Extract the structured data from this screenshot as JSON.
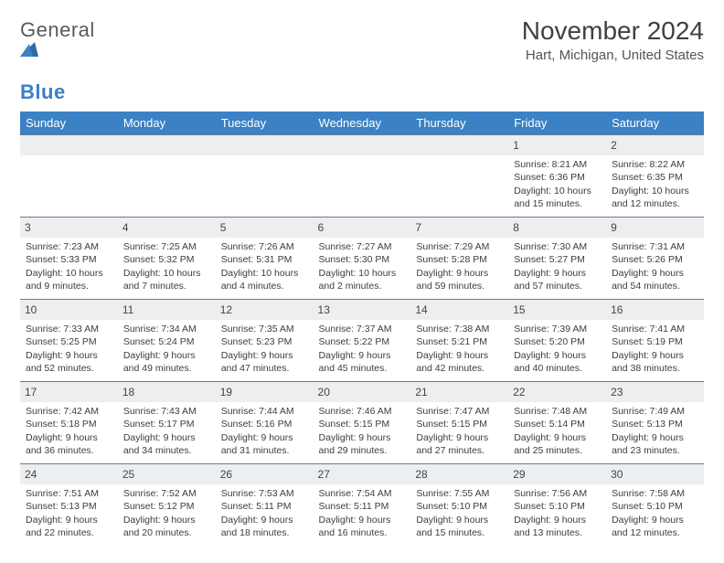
{
  "brand": {
    "part1": "General",
    "part2": "Blue"
  },
  "title": "November 2024",
  "location": "Hart, Michigan, United States",
  "colors": {
    "header_bg": "#3b82c4",
    "header_fg": "#ffffff",
    "daynum_bg": "#eceef0",
    "rule": "#6b7a8f"
  },
  "type": "calendar-table",
  "weekdays": [
    "Sunday",
    "Monday",
    "Tuesday",
    "Wednesday",
    "Thursday",
    "Friday",
    "Saturday"
  ],
  "weeks": [
    [
      {
        "blank": true
      },
      {
        "blank": true
      },
      {
        "blank": true
      },
      {
        "blank": true
      },
      {
        "blank": true
      },
      {
        "day": "1",
        "sunrise": "Sunrise: 8:21 AM",
        "sunset": "Sunset: 6:36 PM",
        "daylight1": "Daylight: 10 hours",
        "daylight2": "and 15 minutes."
      },
      {
        "day": "2",
        "sunrise": "Sunrise: 8:22 AM",
        "sunset": "Sunset: 6:35 PM",
        "daylight1": "Daylight: 10 hours",
        "daylight2": "and 12 minutes."
      }
    ],
    [
      {
        "day": "3",
        "sunrise": "Sunrise: 7:23 AM",
        "sunset": "Sunset: 5:33 PM",
        "daylight1": "Daylight: 10 hours",
        "daylight2": "and 9 minutes."
      },
      {
        "day": "4",
        "sunrise": "Sunrise: 7:25 AM",
        "sunset": "Sunset: 5:32 PM",
        "daylight1": "Daylight: 10 hours",
        "daylight2": "and 7 minutes."
      },
      {
        "day": "5",
        "sunrise": "Sunrise: 7:26 AM",
        "sunset": "Sunset: 5:31 PM",
        "daylight1": "Daylight: 10 hours",
        "daylight2": "and 4 minutes."
      },
      {
        "day": "6",
        "sunrise": "Sunrise: 7:27 AM",
        "sunset": "Sunset: 5:30 PM",
        "daylight1": "Daylight: 10 hours",
        "daylight2": "and 2 minutes."
      },
      {
        "day": "7",
        "sunrise": "Sunrise: 7:29 AM",
        "sunset": "Sunset: 5:28 PM",
        "daylight1": "Daylight: 9 hours",
        "daylight2": "and 59 minutes."
      },
      {
        "day": "8",
        "sunrise": "Sunrise: 7:30 AM",
        "sunset": "Sunset: 5:27 PM",
        "daylight1": "Daylight: 9 hours",
        "daylight2": "and 57 minutes."
      },
      {
        "day": "9",
        "sunrise": "Sunrise: 7:31 AM",
        "sunset": "Sunset: 5:26 PM",
        "daylight1": "Daylight: 9 hours",
        "daylight2": "and 54 minutes."
      }
    ],
    [
      {
        "day": "10",
        "sunrise": "Sunrise: 7:33 AM",
        "sunset": "Sunset: 5:25 PM",
        "daylight1": "Daylight: 9 hours",
        "daylight2": "and 52 minutes."
      },
      {
        "day": "11",
        "sunrise": "Sunrise: 7:34 AM",
        "sunset": "Sunset: 5:24 PM",
        "daylight1": "Daylight: 9 hours",
        "daylight2": "and 49 minutes."
      },
      {
        "day": "12",
        "sunrise": "Sunrise: 7:35 AM",
        "sunset": "Sunset: 5:23 PM",
        "daylight1": "Daylight: 9 hours",
        "daylight2": "and 47 minutes."
      },
      {
        "day": "13",
        "sunrise": "Sunrise: 7:37 AM",
        "sunset": "Sunset: 5:22 PM",
        "daylight1": "Daylight: 9 hours",
        "daylight2": "and 45 minutes."
      },
      {
        "day": "14",
        "sunrise": "Sunrise: 7:38 AM",
        "sunset": "Sunset: 5:21 PM",
        "daylight1": "Daylight: 9 hours",
        "daylight2": "and 42 minutes."
      },
      {
        "day": "15",
        "sunrise": "Sunrise: 7:39 AM",
        "sunset": "Sunset: 5:20 PM",
        "daylight1": "Daylight: 9 hours",
        "daylight2": "and 40 minutes."
      },
      {
        "day": "16",
        "sunrise": "Sunrise: 7:41 AM",
        "sunset": "Sunset: 5:19 PM",
        "daylight1": "Daylight: 9 hours",
        "daylight2": "and 38 minutes."
      }
    ],
    [
      {
        "day": "17",
        "sunrise": "Sunrise: 7:42 AM",
        "sunset": "Sunset: 5:18 PM",
        "daylight1": "Daylight: 9 hours",
        "daylight2": "and 36 minutes."
      },
      {
        "day": "18",
        "sunrise": "Sunrise: 7:43 AM",
        "sunset": "Sunset: 5:17 PM",
        "daylight1": "Daylight: 9 hours",
        "daylight2": "and 34 minutes."
      },
      {
        "day": "19",
        "sunrise": "Sunrise: 7:44 AM",
        "sunset": "Sunset: 5:16 PM",
        "daylight1": "Daylight: 9 hours",
        "daylight2": "and 31 minutes."
      },
      {
        "day": "20",
        "sunrise": "Sunrise: 7:46 AM",
        "sunset": "Sunset: 5:15 PM",
        "daylight1": "Daylight: 9 hours",
        "daylight2": "and 29 minutes."
      },
      {
        "day": "21",
        "sunrise": "Sunrise: 7:47 AM",
        "sunset": "Sunset: 5:15 PM",
        "daylight1": "Daylight: 9 hours",
        "daylight2": "and 27 minutes."
      },
      {
        "day": "22",
        "sunrise": "Sunrise: 7:48 AM",
        "sunset": "Sunset: 5:14 PM",
        "daylight1": "Daylight: 9 hours",
        "daylight2": "and 25 minutes."
      },
      {
        "day": "23",
        "sunrise": "Sunrise: 7:49 AM",
        "sunset": "Sunset: 5:13 PM",
        "daylight1": "Daylight: 9 hours",
        "daylight2": "and 23 minutes."
      }
    ],
    [
      {
        "day": "24",
        "sunrise": "Sunrise: 7:51 AM",
        "sunset": "Sunset: 5:13 PM",
        "daylight1": "Daylight: 9 hours",
        "daylight2": "and 22 minutes."
      },
      {
        "day": "25",
        "sunrise": "Sunrise: 7:52 AM",
        "sunset": "Sunset: 5:12 PM",
        "daylight1": "Daylight: 9 hours",
        "daylight2": "and 20 minutes."
      },
      {
        "day": "26",
        "sunrise": "Sunrise: 7:53 AM",
        "sunset": "Sunset: 5:11 PM",
        "daylight1": "Daylight: 9 hours",
        "daylight2": "and 18 minutes."
      },
      {
        "day": "27",
        "sunrise": "Sunrise: 7:54 AM",
        "sunset": "Sunset: 5:11 PM",
        "daylight1": "Daylight: 9 hours",
        "daylight2": "and 16 minutes."
      },
      {
        "day": "28",
        "sunrise": "Sunrise: 7:55 AM",
        "sunset": "Sunset: 5:10 PM",
        "daylight1": "Daylight: 9 hours",
        "daylight2": "and 15 minutes."
      },
      {
        "day": "29",
        "sunrise": "Sunrise: 7:56 AM",
        "sunset": "Sunset: 5:10 PM",
        "daylight1": "Daylight: 9 hours",
        "daylight2": "and 13 minutes."
      },
      {
        "day": "30",
        "sunrise": "Sunrise: 7:58 AM",
        "sunset": "Sunset: 5:10 PM",
        "daylight1": "Daylight: 9 hours",
        "daylight2": "and 12 minutes."
      }
    ]
  ]
}
